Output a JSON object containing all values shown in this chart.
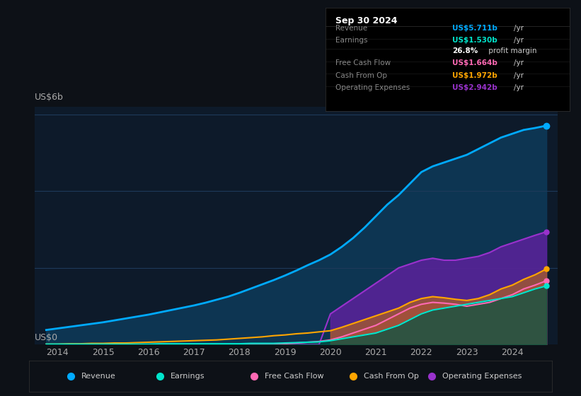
{
  "bg_color": "#0d1117",
  "plot_bg_color": "#0d1a2a",
  "grid_color": "#1e3a5a",
  "title_box_bg": "#000000",
  "title_box_border": "#2a2a2a",
  "years": [
    2013.75,
    2014,
    2014.25,
    2014.5,
    2014.75,
    2015,
    2015.25,
    2015.5,
    2015.75,
    2016,
    2016.25,
    2016.5,
    2016.75,
    2017,
    2017.25,
    2017.5,
    2017.75,
    2018,
    2018.25,
    2018.5,
    2018.75,
    2019,
    2019.25,
    2019.5,
    2019.75,
    2020,
    2020.25,
    2020.5,
    2020.75,
    2021,
    2021.25,
    2021.5,
    2021.75,
    2022,
    2022.25,
    2022.5,
    2022.75,
    2023,
    2023.25,
    2023.5,
    2023.75,
    2024,
    2024.25,
    2024.5,
    2024.75
  ],
  "revenue": [
    0.38,
    0.42,
    0.46,
    0.5,
    0.54,
    0.58,
    0.63,
    0.68,
    0.73,
    0.78,
    0.84,
    0.9,
    0.96,
    1.02,
    1.09,
    1.17,
    1.25,
    1.35,
    1.46,
    1.57,
    1.68,
    1.8,
    1.93,
    2.07,
    2.2,
    2.35,
    2.55,
    2.78,
    3.05,
    3.35,
    3.65,
    3.9,
    4.2,
    4.5,
    4.65,
    4.75,
    4.85,
    4.95,
    5.1,
    5.25,
    5.4,
    5.5,
    5.6,
    5.65,
    5.711
  ],
  "earnings": [
    0.01,
    0.01,
    0.01,
    0.01,
    0.01,
    0.01,
    0.01,
    0.01,
    0.01,
    0.01,
    0.02,
    0.02,
    0.02,
    0.02,
    0.02,
    0.02,
    0.02,
    0.02,
    0.03,
    0.03,
    0.03,
    0.04,
    0.05,
    0.06,
    0.07,
    0.1,
    0.15,
    0.2,
    0.25,
    0.3,
    0.4,
    0.5,
    0.65,
    0.8,
    0.9,
    0.95,
    1.0,
    1.05,
    1.1,
    1.15,
    1.2,
    1.25,
    1.35,
    1.45,
    1.53
  ],
  "free_cash_flow": [
    0.0,
    0.0,
    0.0,
    0.0,
    0.0,
    0.0,
    0.0,
    0.0,
    0.0,
    0.0,
    0.0,
    0.0,
    0.0,
    0.0,
    0.0,
    0.0,
    0.0,
    0.0,
    0.0,
    0.0,
    0.0,
    0.02,
    0.04,
    0.06,
    0.08,
    0.12,
    0.2,
    0.3,
    0.4,
    0.5,
    0.65,
    0.8,
    0.95,
    1.05,
    1.1,
    1.08,
    1.05,
    1.0,
    1.05,
    1.1,
    1.2,
    1.3,
    1.45,
    1.55,
    1.664
  ],
  "cash_from_op": [
    0.01,
    0.01,
    0.02,
    0.02,
    0.03,
    0.03,
    0.04,
    0.04,
    0.05,
    0.06,
    0.07,
    0.08,
    0.09,
    0.1,
    0.11,
    0.12,
    0.14,
    0.16,
    0.18,
    0.2,
    0.23,
    0.25,
    0.28,
    0.3,
    0.33,
    0.36,
    0.45,
    0.55,
    0.65,
    0.75,
    0.85,
    0.95,
    1.1,
    1.2,
    1.25,
    1.22,
    1.18,
    1.15,
    1.2,
    1.3,
    1.45,
    1.55,
    1.7,
    1.82,
    1.972
  ],
  "op_expenses": [
    0.0,
    0.0,
    0.0,
    0.0,
    0.0,
    0.0,
    0.0,
    0.0,
    0.0,
    0.0,
    0.0,
    0.0,
    0.0,
    0.0,
    0.0,
    0.0,
    0.0,
    0.0,
    0.0,
    0.0,
    0.0,
    0.0,
    0.0,
    0.0,
    0.0,
    0.8,
    1.0,
    1.2,
    1.4,
    1.6,
    1.8,
    2.0,
    2.1,
    2.2,
    2.25,
    2.2,
    2.2,
    2.25,
    2.3,
    2.4,
    2.55,
    2.65,
    2.75,
    2.85,
    2.942
  ],
  "revenue_color": "#00aaff",
  "earnings_color": "#00e5cc",
  "free_cash_flow_color": "#ff69b4",
  "cash_from_op_color": "#ffa500",
  "op_expenses_color": "#9932cc",
  "revenue_fill": "#1a4a6a",
  "earnings_fill": "#00e5cc",
  "free_cash_flow_fill": "#c060a0",
  "cash_from_op_fill": "#c87020",
  "op_expenses_fill": "#7030a0",
  "ylabel": "US$6b",
  "y0label": "US$0",
  "ylim": [
    0,
    6.2
  ],
  "table_title": "Sep 30 2024",
  "table_rows": [
    {
      "label": "Revenue",
      "value": "US$5.711b",
      "unit": "/yr",
      "color": "#00aaff"
    },
    {
      "label": "Earnings",
      "value": "US$1.530b",
      "unit": "/yr",
      "color": "#00e5cc"
    },
    {
      "label": "",
      "value": "26.8%",
      "unit": " profit margin",
      "color": "#ffffff"
    },
    {
      "label": "Free Cash Flow",
      "value": "US$1.664b",
      "unit": "/yr",
      "color": "#ff69b4"
    },
    {
      "label": "Cash From Op",
      "value": "US$1.972b",
      "unit": "/yr",
      "color": "#ffa500"
    },
    {
      "label": "Operating Expenses",
      "value": "US$2.942b",
      "unit": "/yr",
      "color": "#9932cc"
    }
  ],
  "legend_items": [
    {
      "label": "Revenue",
      "color": "#00aaff"
    },
    {
      "label": "Earnings",
      "color": "#00e5cc"
    },
    {
      "label": "Free Cash Flow",
      "color": "#ff69b4"
    },
    {
      "label": "Cash From Op",
      "color": "#ffa500"
    },
    {
      "label": "Operating Expenses",
      "color": "#9932cc"
    }
  ],
  "xmin": 2013.5,
  "xmax": 2025.0,
  "xticks": [
    2014,
    2015,
    2016,
    2017,
    2018,
    2019,
    2020,
    2021,
    2022,
    2023,
    2024
  ],
  "op_expenses_start_year": 2019.75
}
